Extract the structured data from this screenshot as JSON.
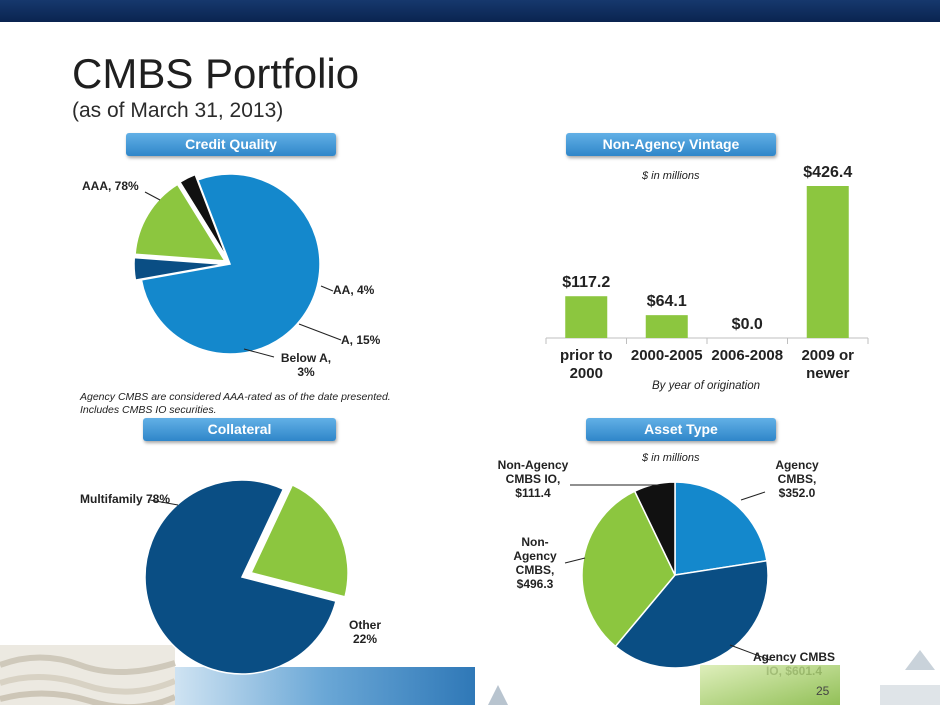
{
  "header": {
    "title": "CMBS Portfolio",
    "subtitle": "(as of March 31, 2013)"
  },
  "sections": {
    "credit_quality": "Credit Quality",
    "vintage": "Non-Agency Vintage",
    "collateral": "Collateral",
    "asset_type": "Asset Type"
  },
  "notes": {
    "credit_line1": "Agency CMBS are considered AAA-rated  as of the date presented.",
    "credit_line2": "Includes CMBS IO securities.",
    "vintage_units": "$ in millions",
    "vintage_axis": "By year of origination",
    "asset_units": "$ in millions"
  },
  "page_number": "25",
  "colors": {
    "navy": "#0c2a58",
    "blue": "#1488cc",
    "dark_blue": "#0a4e84",
    "green": "#8cc63f",
    "black": "#111111"
  },
  "chart_data": [
    {
      "type": "pie",
      "title": "Credit Quality",
      "slices": [
        {
          "label": "AAA, 78%",
          "value": 78,
          "color": "#1488cc"
        },
        {
          "label": "AA, 4%",
          "value": 4,
          "color": "#0a4e84"
        },
        {
          "label": "A, 15%",
          "value": 15,
          "color": "#8cc63f"
        },
        {
          "label": "Below A, 3%",
          "value": 3,
          "color": "#111111"
        }
      ]
    },
    {
      "type": "bar",
      "title": "Non-Agency Vintage",
      "categories": [
        "prior to 2000",
        "2000-2005",
        "2006-2008",
        "2009 or newer"
      ],
      "values": [
        117.2,
        64.1,
        0.0,
        426.4
      ],
      "data_labels": [
        "$117.2",
        "$64.1",
        "$0.0",
        "$426.4"
      ],
      "xlabel": "By year of origination",
      "ylim": [
        0,
        426.4
      ],
      "color": "#8cc63f"
    },
    {
      "type": "pie",
      "title": "Collateral",
      "slices": [
        {
          "label": "Multifamily 78%",
          "value": 78,
          "color": "#0a4e84"
        },
        {
          "label": "Other 22%",
          "value": 22,
          "color": "#8cc63f"
        }
      ]
    },
    {
      "type": "pie",
      "title": "Asset Type",
      "slices": [
        {
          "label": "Agency CMBS, $352.0",
          "value": 352.0,
          "color": "#1488cc"
        },
        {
          "label": "Agency CMBS IO, $601.4",
          "value": 601.4,
          "color": "#0a4e84"
        },
        {
          "label": "Non-Agency CMBS, $496.3",
          "value": 496.3,
          "color": "#8cc63f"
        },
        {
          "label": "Non-Agency CMBS IO, $111.4",
          "value": 111.4,
          "color": "#111111"
        }
      ]
    }
  ]
}
